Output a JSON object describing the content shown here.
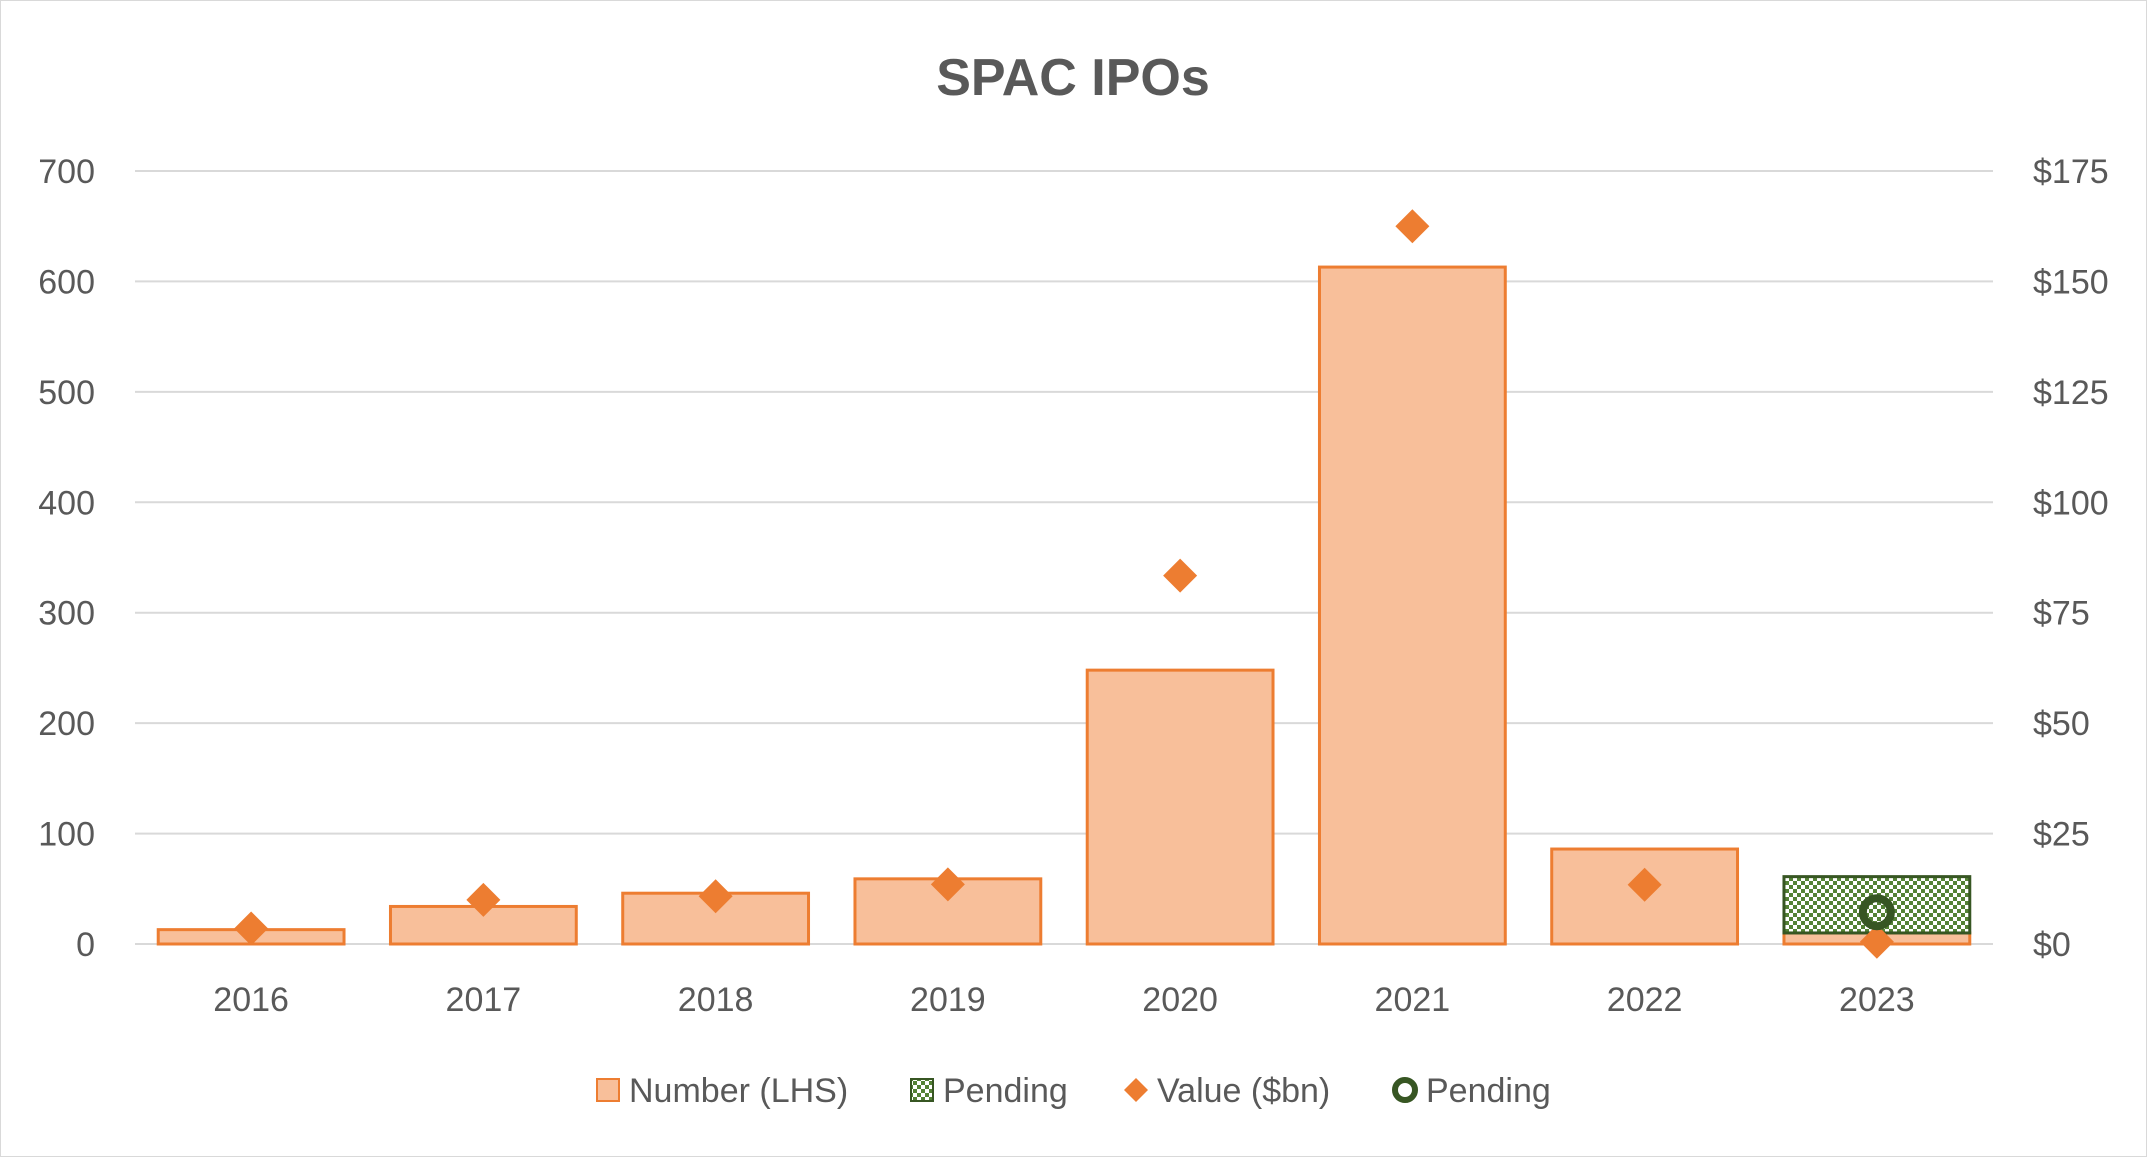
{
  "chart_data": {
    "type": "bar",
    "title": "SPAC IPOs",
    "categories": [
      "2016",
      "2017",
      "2018",
      "2019",
      "2020",
      "2021",
      "2022",
      "2023"
    ],
    "series": [
      {
        "name": "Number (LHS)",
        "kind": "bar",
        "axis": "left",
        "values": [
          13,
          34,
          46,
          59,
          248,
          613,
          86,
          10
        ],
        "color": "#f8bf9a",
        "border": "#ed7d31"
      },
      {
        "name": "Pending",
        "kind": "bar-stacked",
        "axis": "left",
        "values": [
          0,
          0,
          0,
          0,
          0,
          0,
          0,
          51
        ],
        "color": "#548235",
        "pattern": "checker"
      },
      {
        "name": "Value ($bn)",
        "kind": "marker-diamond",
        "axis": "right",
        "values": [
          3.5,
          10,
          10.8,
          13.5,
          83.4,
          162.5,
          13.4,
          0.5
        ],
        "color": "#ed7d31"
      },
      {
        "name": "Pending",
        "kind": "marker-ring",
        "axis": "right",
        "values": [
          null,
          null,
          null,
          null,
          null,
          null,
          null,
          7.2
        ],
        "color": "#375623"
      }
    ],
    "left_axis": {
      "ylim": [
        0,
        700
      ],
      "ticks": [
        "0",
        "100",
        "200",
        "300",
        "400",
        "500",
        "600",
        "700"
      ]
    },
    "right_axis": {
      "ylim": [
        0,
        175
      ],
      "ticks": [
        "$0",
        "$25",
        "$50",
        "$75",
        "$100",
        "$125",
        "$150",
        "$175"
      ]
    },
    "grid": true,
    "legend": {
      "position": "bottom"
    }
  }
}
